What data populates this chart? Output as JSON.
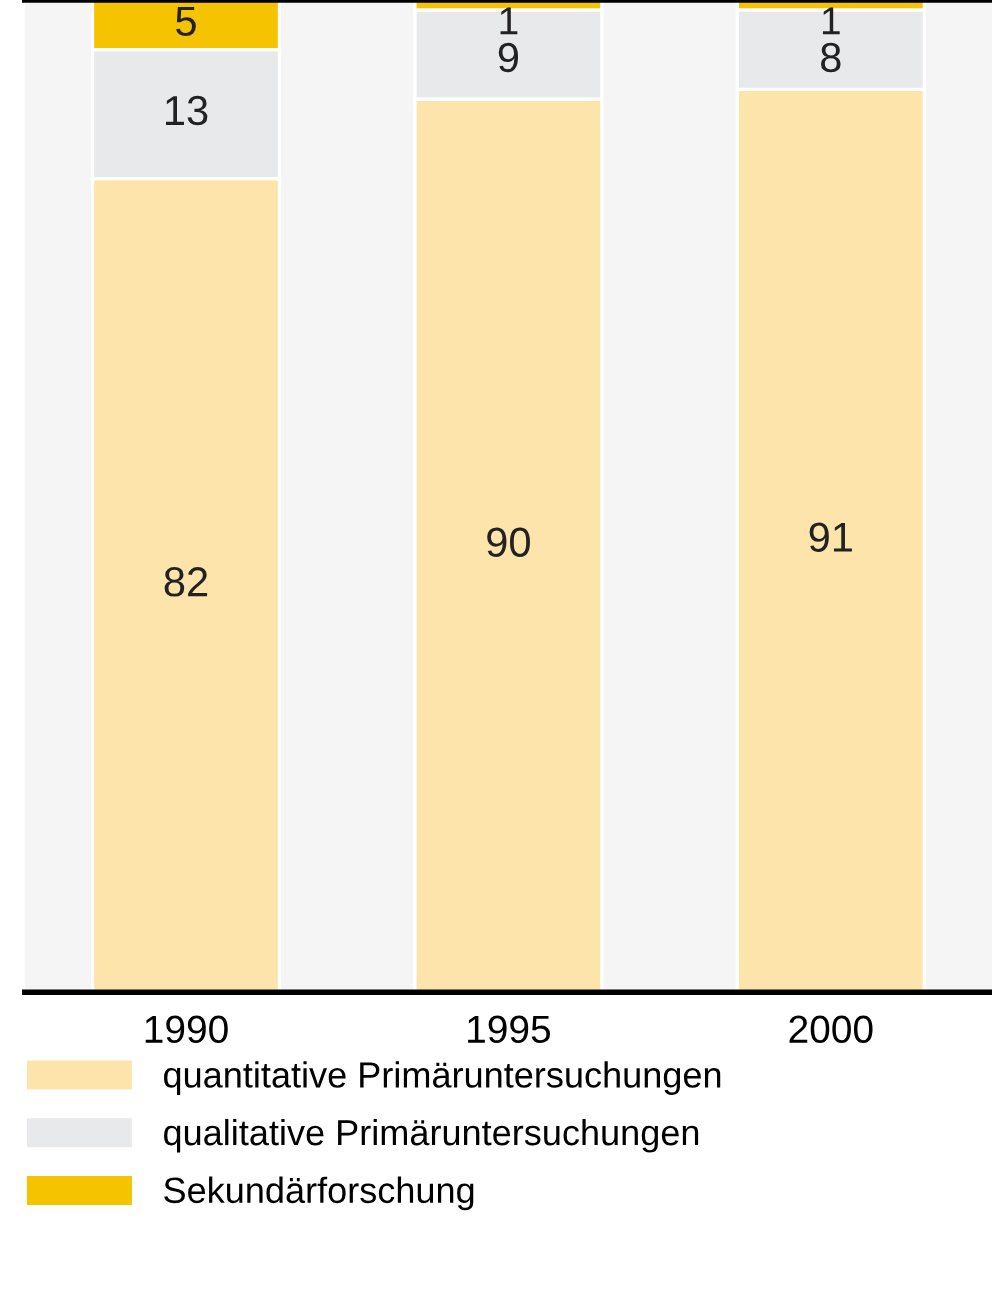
{
  "chart_data": {
    "type": "bar",
    "stacked": true,
    "categories": [
      "1990",
      "1995",
      "2000"
    ],
    "ylim": [
      0,
      100
    ],
    "tick_labels": "x",
    "data_labels": true,
    "grid": false,
    "legend": "bottom",
    "series": [
      {
        "name": "quantitative Primäruntersuchungen",
        "color": "#fde4ab",
        "values": [
          82,
          90,
          91
        ]
      },
      {
        "name": "qualitative Primäruntersuchungen",
        "color": "#e8e9eb",
        "values": [
          13,
          9,
          8
        ]
      },
      {
        "name": "Sekundärforschung",
        "color": "#f5c300",
        "values": [
          5,
          1,
          1
        ]
      }
    ]
  }
}
